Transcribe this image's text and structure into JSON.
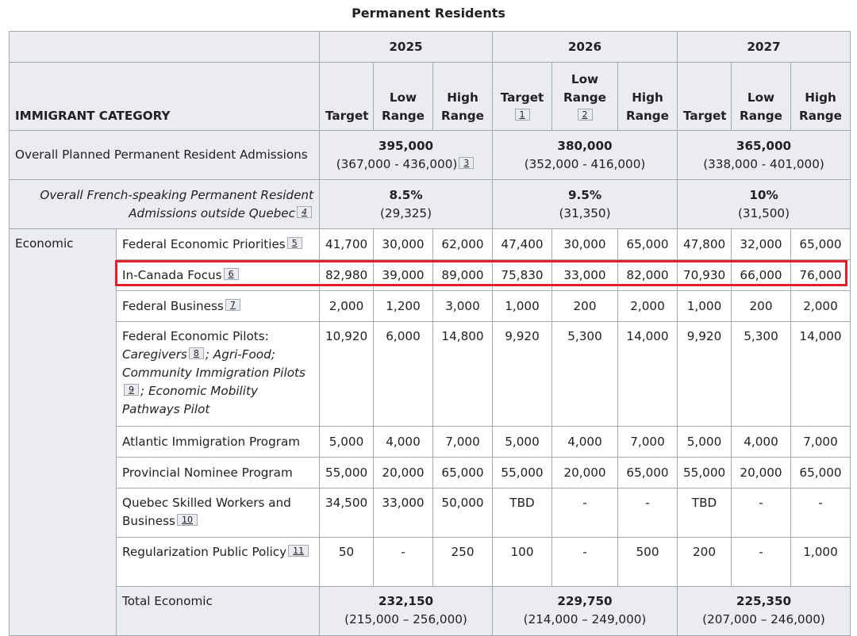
{
  "caption": "Permanent Residents",
  "header": {
    "years": [
      "2025",
      "2026",
      "2027"
    ],
    "category_label": "IMMIGRANT CATEGORY",
    "target": "Target",
    "low_range": "Low Range",
    "high_range": "High Range",
    "notes_2026": {
      "target": "1",
      "low": "2"
    }
  },
  "overall": {
    "label": "Overall Planned Permanent Resident Admissions",
    "values": [
      {
        "main": "395,000",
        "range": "(367,000 - 436,000)",
        "note": "3"
      },
      {
        "main": "380,000",
        "range": "(352,000 - 416,000)"
      },
      {
        "main": "365,000",
        "range": "(338,000 - 401,000)"
      }
    ]
  },
  "french": {
    "label": "Overall French-speaking Permanent Resident Admissions outside Quebec",
    "note": "4",
    "values": [
      {
        "main": "8.5%",
        "range": "(29,325)"
      },
      {
        "main": "9.5%",
        "range": "(31,350)"
      },
      {
        "main": "10%",
        "range": "(31,500)"
      }
    ]
  },
  "economic": {
    "label": "Economic",
    "rows": [
      {
        "name": "Federal Economic Priorities",
        "note": "5",
        "cells": [
          "41,700",
          "30,000",
          "62,000",
          "47,400",
          "30,000",
          "65,000",
          "47,800",
          "32,000",
          "65,000"
        ]
      },
      {
        "name": "In-Canada Focus",
        "note": "6",
        "cells": [
          "82,980",
          "39,000",
          "89,000",
          "75,830",
          "33,000",
          "82,000",
          "70,930",
          "66,000",
          "76,000"
        ]
      },
      {
        "name": "Federal Business",
        "note": "7",
        "cells": [
          "2,000",
          "1,200",
          "3,000",
          "1,000",
          "200",
          "2,000",
          "1,000",
          "200",
          "2,000"
        ]
      },
      {
        "name_parts": {
          "a": "Federal Economic Pilots:",
          "b": "Caregivers",
          "note_b": "8",
          "c": "; Agri-Food; Community Immigration Pilots",
          "note_c": "9",
          "d": "; Economic Mobility Pathways Pilot"
        },
        "cells": [
          "10,920",
          "6,000",
          "14,800",
          "9,920",
          "5,300",
          "14,000",
          "9,920",
          "5,300",
          "14,000"
        ]
      },
      {
        "name": "Atlantic Immigration Program",
        "cells": [
          "5,000",
          "4,000",
          "7,000",
          "5,000",
          "4,000",
          "7,000",
          "5,000",
          "4,000",
          "7,000"
        ]
      },
      {
        "name": "Provincial Nominee Program",
        "cells": [
          "55,000",
          "20,000",
          "65,000",
          "55,000",
          "20,000",
          "65,000",
          "55,000",
          "20,000",
          "65,000"
        ]
      },
      {
        "name": "Quebec Skilled Workers and Business",
        "note": "10",
        "cells": [
          "34,500",
          "33,000",
          "50,000",
          "TBD",
          "-",
          "-",
          "TBD",
          "-",
          "-"
        ]
      },
      {
        "name": "Regularization Public Policy",
        "note": "11",
        "cells": [
          "50",
          "-",
          "250",
          "100",
          "-",
          "500",
          "200",
          "-",
          "1,000"
        ]
      }
    ],
    "total": {
      "label": "Total Economic",
      "values": [
        {
          "main": "232,150",
          "range": "(215,000 – 256,000)"
        },
        {
          "main": "229,750",
          "range": "(214,000 – 249,000)"
        },
        {
          "main": "225,350",
          "range": "(207,000 – 246,000)"
        }
      ]
    }
  },
  "colors": {
    "highlight": "#e0202a",
    "header_bg": "#eaecf0",
    "border": "#a2a9b1"
  }
}
